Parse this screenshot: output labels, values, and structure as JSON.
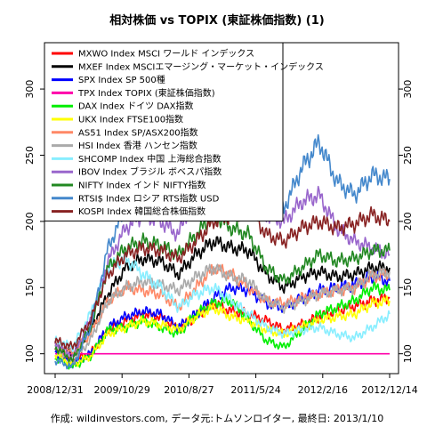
{
  "chart_data": {
    "type": "line",
    "title": "相対株価 vs TOPIX (東証株価指数) (1)",
    "caption": "作成: wildinvestors.com, データ元:トムソンロイター, 最終日: 2013/1/10",
    "x_tick_labels": [
      "2008/12/31",
      "2009/10/29",
      "2010/8/27",
      "2011/5/24",
      "2012/2/16",
      "2012/12/14"
    ],
    "y_ticks": [
      100,
      150,
      200,
      250,
      300
    ],
    "ylim": [
      85,
      335
    ],
    "grid": false,
    "legend_position": "top-left",
    "series": [
      {
        "name": "MXWO Index MSCI ワールド インデックス",
        "color": "#ff0000",
        "values": [
          103,
          95,
          100,
          118,
          125,
          130,
          128,
          118,
          128,
          138,
          132,
          130,
          125,
          118,
          122,
          128,
          132,
          136,
          140,
          142
        ]
      },
      {
        "name": "MXEF Index MSCIエマージング・マーケット・インデックス",
        "color": "#000000",
        "values": [
          108,
          100,
          118,
          145,
          165,
          172,
          170,
          160,
          175,
          185,
          180,
          178,
          160,
          150,
          158,
          162,
          158,
          160,
          165,
          165
        ]
      },
      {
        "name": "SPX Index SP 500種",
        "color": "#0000ff",
        "values": [
          100,
          92,
          100,
          120,
          128,
          132,
          130,
          120,
          130,
          142,
          150,
          148,
          138,
          135,
          142,
          148,
          150,
          152,
          158,
          155
        ]
      },
      {
        "name": "TPX Index TOPIX (東証株価指数)",
        "color": "#ff00aa",
        "values": [
          100,
          100,
          100,
          100,
          100,
          100,
          100,
          100,
          100,
          100,
          100,
          100,
          100,
          100,
          100,
          100,
          100,
          100,
          100,
          100
        ]
      },
      {
        "name": "DAX Index ドイツ DAX指数",
        "color": "#00ee00",
        "values": [
          97,
          90,
          98,
          118,
          120,
          125,
          120,
          115,
          130,
          138,
          140,
          125,
          110,
          105,
          118,
          130,
          135,
          140,
          150,
          148
        ]
      },
      {
        "name": "UKX Index FTSE100指数",
        "color": "#ffff00",
        "values": [
          100,
          92,
          98,
          115,
          120,
          125,
          122,
          118,
          128,
          135,
          128,
          125,
          118,
          115,
          120,
          125,
          128,
          130,
          138,
          140
        ]
      },
      {
        "name": "AS51 Index SP/ASX200指数",
        "color": "#ff8866",
        "values": [
          108,
          100,
          115,
          140,
          150,
          148,
          145,
          135,
          150,
          165,
          160,
          150,
          140,
          138,
          142,
          145,
          148,
          150,
          158,
          160
        ]
      },
      {
        "name": "HSI Index 香港 ハンセン指数",
        "color": "#aaaaaa",
        "values": [
          105,
          95,
          110,
          140,
          150,
          155,
          152,
          148,
          158,
          165,
          158,
          155,
          140,
          135,
          140,
          145,
          148,
          150,
          160,
          162
        ]
      },
      {
        "name": "SHCOMP Index 中国 上海総合指数",
        "color": "#88eeff",
        "values": [
          110,
          105,
          130,
          165,
          172,
          160,
          150,
          135,
          145,
          150,
          140,
          130,
          120,
          115,
          118,
          120,
          115,
          112,
          120,
          130
        ]
      },
      {
        "name": "IBOV Index ブラジル ボベスパ指数",
        "color": "#9966cc",
        "values": [
          108,
          98,
          125,
          170,
          195,
          205,
          200,
          190,
          225,
          240,
          230,
          225,
          205,
          200,
          215,
          220,
          195,
          185,
          180,
          175
        ]
      },
      {
        "name": "NIFTY Index インド NIFTY指数",
        "color": "#228822",
        "values": [
          105,
          95,
          120,
          165,
          180,
          185,
          182,
          175,
          190,
          205,
          195,
          190,
          165,
          155,
          165,
          175,
          170,
          172,
          178,
          178
        ]
      },
      {
        "name": "RTSI$ Index ロシア RTS指数 USD",
        "color": "#4488cc",
        "values": [
          95,
          90,
          120,
          180,
          210,
          230,
          225,
          215,
          260,
          300,
          290,
          270,
          225,
          210,
          240,
          260,
          230,
          220,
          235,
          232
        ]
      },
      {
        "name": "KOSPI Index 韓国総合株価指数",
        "color": "#882222",
        "values": [
          110,
          105,
          125,
          160,
          175,
          180,
          178,
          172,
          185,
          200,
          205,
          210,
          190,
          185,
          195,
          200,
          195,
          198,
          205,
          200
        ]
      }
    ]
  }
}
